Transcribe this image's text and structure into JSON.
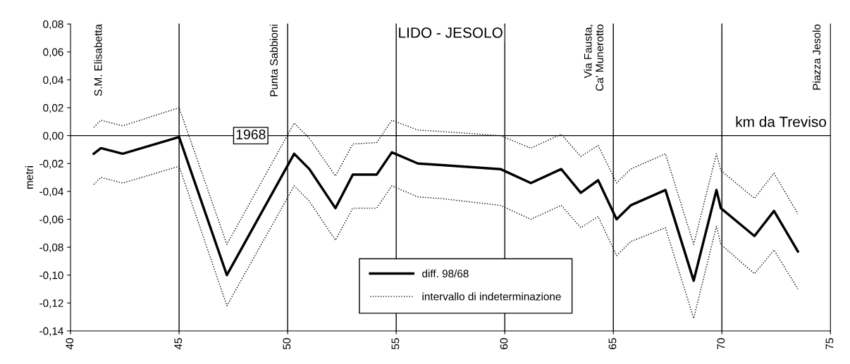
{
  "chart_data": {
    "type": "line",
    "title": "LIDO - JESOLO",
    "xlabel": "km da Treviso",
    "ylabel": "metri",
    "xlim": [
      40,
      75
    ],
    "xticks": [
      40,
      45,
      50,
      55,
      60,
      65,
      70,
      75
    ],
    "ylim": [
      -0.14,
      0.08
    ],
    "yticks": [
      {
        "value": 0.08,
        "label": "0,08"
      },
      {
        "value": 0.06,
        "label": "0,06"
      },
      {
        "value": 0.04,
        "label": "0,04"
      },
      {
        "value": 0.02,
        "label": "0,02"
      },
      {
        "value": 0,
        "label": "0,00"
      },
      {
        "value": -0.02,
        "label": "-0,02"
      },
      {
        "value": -0.04,
        "label": "-0,04"
      },
      {
        "value": -0.06,
        "label": "-0,06"
      },
      {
        "value": -0.08,
        "label": "-0,08"
      },
      {
        "value": -0.1,
        "label": "-0,10"
      },
      {
        "value": -0.12,
        "label": "-0,12"
      },
      {
        "value": -0.14,
        "label": "-0,14"
      }
    ],
    "x": [
      41.07,
      41.4,
      42.4,
      45,
      47.2,
      50.3,
      51.0,
      52.2,
      53.0,
      54.1,
      54.8,
      56.0,
      57.0,
      59.8,
      61.2,
      62.6,
      63.5,
      64.3,
      65.15,
      65.8,
      67.4,
      68.7,
      69.75,
      69.95,
      71.5,
      72.4,
      73.5
    ],
    "series": [
      {
        "name": "diff. 98/68",
        "color": "#000000",
        "line_style": "solid",
        "values": [
          -0.013,
          -0.009,
          -0.013,
          -0.001,
          -0.1,
          -0.013,
          -0.024,
          -0.052,
          -0.028,
          -0.028,
          -0.012,
          -0.02,
          -0.021,
          -0.024,
          -0.034,
          -0.024,
          -0.041,
          -0.032,
          -0.06,
          -0.05,
          -0.039,
          -0.104,
          -0.039,
          -0.052,
          -0.072,
          -0.054,
          -0.083
        ]
      },
      {
        "name": "intervallo di indeterminazione",
        "color": "#000000",
        "line_style": "dotted",
        "values": [
          0.006,
          0.011,
          0.007,
          0.02,
          -0.078,
          0.009,
          -0.002,
          -0.029,
          -0.006,
          -0.005,
          0.011,
          0.004,
          0.003,
          0.0,
          -0.009,
          0.001,
          -0.015,
          -0.007,
          -0.034,
          -0.024,
          -0.013,
          -0.078,
          -0.013,
          -0.025,
          -0.045,
          -0.027,
          -0.056
        ]
      },
      {
        "color": "#000000",
        "line_style": "dotted",
        "values": [
          -0.035,
          -0.03,
          -0.034,
          -0.022,
          -0.122,
          -0.036,
          -0.047,
          -0.075,
          -0.052,
          -0.052,
          -0.036,
          -0.044,
          -0.045,
          -0.05,
          -0.06,
          -0.05,
          -0.066,
          -0.058,
          -0.086,
          -0.076,
          -0.066,
          -0.131,
          -0.065,
          -0.078,
          -0.099,
          -0.082,
          -0.11
        ]
      }
    ],
    "ref_lines": [
      {
        "axis": "y",
        "value": 0,
        "color": "#000000"
      },
      {
        "axis": "x",
        "value": 45,
        "color": "#000000"
      },
      {
        "axis": "x",
        "value": 50,
        "label": "Punta Sabbioni",
        "color": "#000000"
      },
      {
        "axis": "x",
        "value": 55,
        "color": "#000000"
      },
      {
        "axis": "x",
        "value": 60,
        "color": "#000000"
      },
      {
        "axis": "x",
        "value": 65,
        "label": "Via Fausta,\nCa' Munerotto",
        "color": "#000000"
      },
      {
        "axis": "x",
        "value": 70,
        "color": "#000000"
      }
    ],
    "legend": "bottom",
    "marker": "none",
    "annotations": [
      "S.M. Elisabetta",
      "Piazza Jesolo",
      {
        "text": "1968",
        "x": 48.3,
        "y": 0
      }
    ]
  }
}
